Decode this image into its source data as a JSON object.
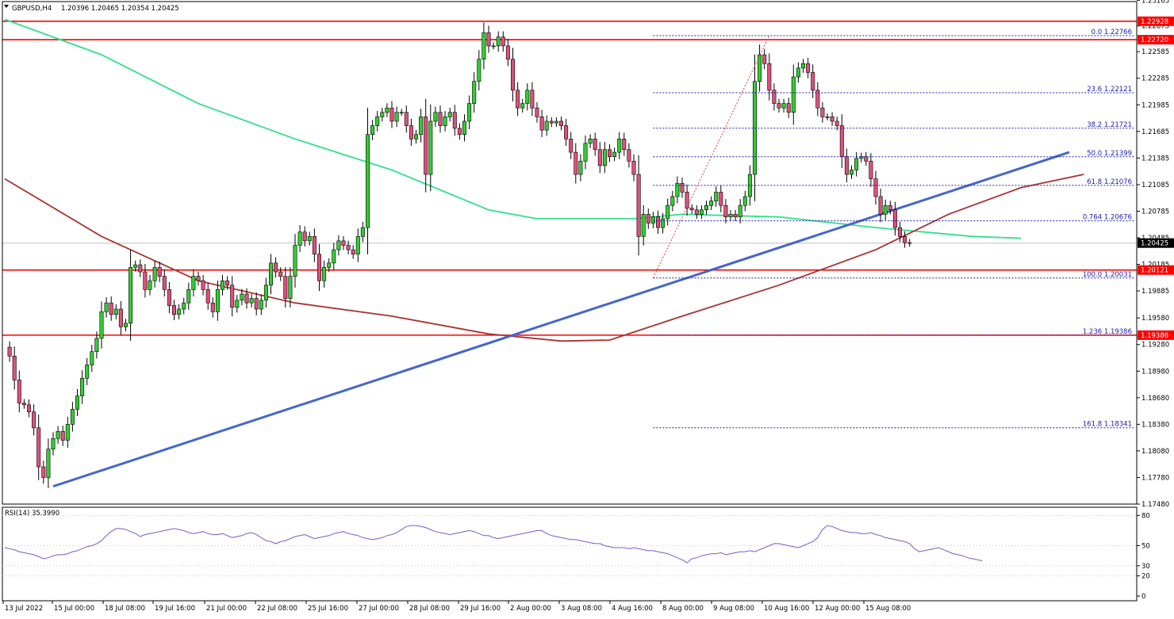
{
  "header": {
    "symbol": "GBPUSD,H4",
    "ohlc": "1.20396 1.20465 1.20354 1.20425"
  },
  "rsi": {
    "label": "RSI(14) 35.3990",
    "levels": [
      "80",
      "50",
      "30",
      "20",
      "0"
    ],
    "values": [
      48,
      47,
      46,
      44,
      43,
      42,
      41,
      39,
      37,
      38,
      40,
      41,
      41,
      42,
      44,
      45,
      47,
      49,
      50,
      52,
      55,
      60,
      64,
      67,
      67,
      66,
      64,
      62,
      59,
      61,
      62,
      63,
      64,
      65,
      66,
      67,
      66,
      65,
      63,
      62,
      63,
      64,
      62,
      61,
      61,
      62,
      60,
      58,
      59,
      60,
      62,
      63,
      61,
      58,
      55,
      54,
      52,
      54,
      55,
      57,
      59,
      60,
      61,
      59,
      57,
      58,
      59,
      60,
      62,
      63,
      64,
      62,
      61,
      60,
      58,
      57,
      56,
      57,
      58,
      60,
      61,
      63,
      66,
      69,
      70,
      70,
      69,
      68,
      66,
      64,
      63,
      62,
      61,
      62,
      63,
      64,
      65,
      64,
      62,
      60,
      60,
      58,
      57,
      58,
      59,
      60,
      61,
      62,
      63,
      64,
      65,
      65,
      62,
      60,
      59,
      58,
      57,
      56,
      56,
      55,
      54,
      53,
      52,
      52,
      50,
      49,
      48,
      48,
      48,
      47,
      48,
      47,
      46,
      45,
      45,
      44,
      43,
      42,
      40,
      38,
      36,
      33,
      37,
      38,
      40,
      41,
      42,
      42,
      43,
      41,
      42,
      43,
      44,
      44,
      45,
      44,
      46,
      48,
      50,
      52,
      52,
      51,
      50,
      49,
      48,
      50,
      52,
      54,
      58,
      66,
      70,
      69,
      67,
      65,
      64,
      63,
      63,
      62,
      62,
      63,
      61,
      60,
      58,
      57,
      56,
      55,
      54,
      52,
      47,
      44,
      45,
      46,
      47,
      48,
      46,
      44,
      42,
      41,
      40,
      38,
      37,
      36,
      35
    ]
  },
  "chart_data": {
    "type": "candlestick",
    "symbol": "GBPUSD",
    "timeframe": "H4",
    "price_scale": {
      "min": 1.1748,
      "max": 1.2315,
      "ticks": [
        "1.23165",
        "1.22875",
        "1.22585",
        "1.22285",
        "1.21985",
        "1.21685",
        "1.21385",
        "1.21085",
        "1.20785",
        "1.20485",
        "1.20185",
        "1.19885",
        "1.19580",
        "1.19280",
        "1.18980",
        "1.18680",
        "1.18380",
        "1.18080",
        "1.17780",
        "1.17480"
      ]
    },
    "x_labels": [
      "13 Jul 2022",
      "15 Jul 00:00",
      "18 Jul 08:00",
      "19 Jul 16:00",
      "21 Jul 00:00",
      "22 Jul 08:00",
      "25 Jul 16:00",
      "27 Jul 00:00",
      "28 Jul 08:00",
      "29 Jul 16:00",
      "2 Aug 00:00",
      "3 Aug 08:00",
      "4 Aug 16:00",
      "8 Aug 00:00",
      "9 Aug 08:00",
      "10 Aug 16:00",
      "12 Aug 00:00",
      "15 Aug 08:00"
    ],
    "closes": [
      1.1925,
      1.1915,
      1.1888,
      1.1862,
      1.186,
      1.1852,
      1.1834,
      1.179,
      1.1778,
      1.181,
      1.1822,
      1.183,
      1.182,
      1.1838,
      1.1855,
      1.187,
      1.189,
      1.1905,
      1.192,
      1.1935,
      1.1965,
      1.1975,
      1.1962,
      1.1968,
      1.1948,
      1.1952,
      1.2015,
      1.2018,
      1.201,
      1.199,
      1.2,
      1.2015,
      1.2005,
      1.199,
      1.1972,
      1.1962,
      1.1968,
      1.1975,
      1.199,
      1.2005,
      1.2,
      1.199,
      1.1975,
      1.1965,
      1.199,
      1.2,
      1.1995,
      1.197,
      1.1978,
      1.1985,
      1.1975,
      1.198,
      1.1968,
      1.1978,
      1.1995,
      1.202,
      1.201,
      1.2005,
      1.198,
      1.2005,
      1.204,
      1.2055,
      1.2045,
      1.205,
      1.203,
      1.2,
      1.2015,
      1.202,
      1.2035,
      1.2045,
      1.204,
      1.2035,
      1.203,
      1.205,
      1.206,
      1.2165,
      1.2175,
      1.2185,
      1.219,
      1.2195,
      1.218,
      1.219,
      1.219,
      1.2175,
      1.216,
      1.2165,
      1.2185,
      1.212,
      1.218,
      1.219,
      1.2175,
      1.2185,
      1.219,
      1.2172,
      1.2165,
      1.218,
      1.22,
      1.2225,
      1.225,
      1.228,
      1.2265,
      1.2265,
      1.2275,
      1.2265,
      1.225,
      1.2215,
      1.2195,
      1.22,
      1.2215,
      1.2195,
      1.2185,
      1.217,
      1.218,
      1.2178,
      1.218,
      1.2175,
      1.216,
      1.2145,
      1.212,
      1.2135,
      1.2155,
      1.216,
      1.2148,
      1.213,
      1.2148,
      1.214,
      1.2145,
      1.216,
      1.2148,
      1.2135,
      1.212,
      1.205,
      1.2075,
      1.2065,
      1.2072,
      1.206,
      1.207,
      1.2085,
      1.2095,
      1.211,
      1.21,
      1.2082,
      1.208,
      1.2075,
      1.208,
      1.2085,
      1.209,
      1.21,
      1.2085,
      1.2072,
      1.2075,
      1.2072,
      1.2085,
      1.2095,
      1.212,
      1.2225,
      1.2255,
      1.2245,
      1.2215,
      1.22,
      1.2195,
      1.22,
      1.219,
      1.223,
      1.224,
      1.2245,
      1.2235,
      1.2215,
      1.2195,
      1.2185,
      1.2185,
      1.218,
      1.2175,
      1.214,
      1.212,
      1.2125,
      1.2138,
      1.214,
      1.2135,
      1.2115,
      1.2095,
      1.2075,
      1.2085,
      1.208,
      1.206,
      1.205,
      1.2043,
      1.20425
    ],
    "moving_averages": [
      {
        "name": "",
        "color": "#32e08a",
        "points": [
          [
            0,
            1.2295
          ],
          [
            20,
            1.2255
          ],
          [
            40,
            1.22
          ],
          [
            60,
            1.216
          ],
          [
            80,
            1.2125
          ],
          [
            100,
            1.208
          ],
          [
            110,
            1.207
          ],
          [
            130,
            1.207
          ],
          [
            140,
            1.2075
          ],
          [
            160,
            1.2072
          ],
          [
            180,
            1.206
          ],
          [
            200,
            1.205
          ],
          [
            210,
            1.2048
          ]
        ]
      },
      {
        "name": "",
        "color": "#a83232",
        "points": [
          [
            0,
            1.2115
          ],
          [
            20,
            1.205
          ],
          [
            40,
            1.2
          ],
          [
            60,
            1.1975
          ],
          [
            80,
            1.196
          ],
          [
            100,
            1.194
          ],
          [
            115,
            1.1932
          ],
          [
            125,
            1.1933
          ],
          [
            140,
            1.196
          ],
          [
            160,
            1.1995
          ],
          [
            180,
            1.2035
          ],
          [
            195,
            1.2075
          ],
          [
            210,
            1.2105
          ],
          [
            223,
            1.212
          ]
        ]
      }
    ],
    "trendline": {
      "color": "#4466cc",
      "from": [
        10,
        1.1768
      ],
      "to": [
        220,
        1.2145
      ]
    },
    "horizontal_levels": [
      {
        "price": 1.22928,
        "label": "1.22928",
        "color": "#ff0000"
      },
      {
        "price": 1.2272,
        "label": "1.22720",
        "color": "#ff0000"
      },
      {
        "price": 1.20121,
        "label": "1.20121",
        "color": "#ff0000"
      },
      {
        "price": 1.19386,
        "label": "1.19386",
        "color": "#ff0000"
      },
      {
        "price": 1.20425,
        "label": "1.20425",
        "color": "#000000"
      }
    ],
    "fibonacci": [
      {
        "label": "0.0 1.22766",
        "price": 1.22766
      },
      {
        "label": "23.6 1.22121",
        "price": 1.22121
      },
      {
        "label": "38.2 1.21721",
        "price": 1.21721
      },
      {
        "label": "50.0 1.21399",
        "price": 1.21399
      },
      {
        "label": "61.8 1.21076",
        "price": 1.21076
      },
      {
        "label": "0.764 1.20676",
        "price": 1.20676
      },
      {
        "label": "100.0 1.20031",
        "price": 1.20031
      },
      {
        "label": "1.236 1.19386",
        "price": 1.19386
      },
      {
        "label": "161.8 1.18341",
        "price": 1.18341
      }
    ],
    "colors": {
      "bull": "#32cd32",
      "bear": "#e0507a",
      "border": "#000000"
    }
  }
}
